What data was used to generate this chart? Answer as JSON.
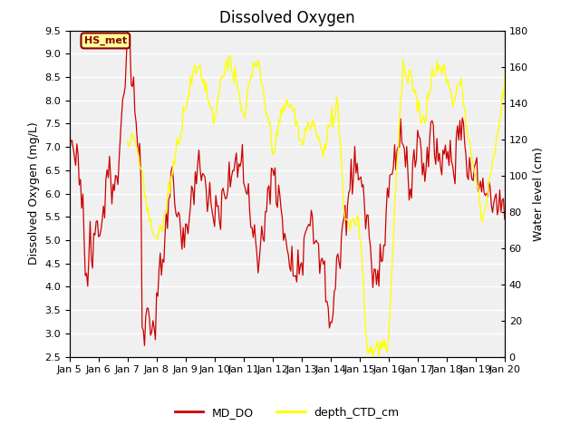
{
  "title": "Dissolved Oxygen",
  "ylabel_left": "Dissolved Oxygen (mg/L)",
  "ylabel_right": "Water level (cm)",
  "ylim_left": [
    2.5,
    9.5
  ],
  "ylim_right": [
    0,
    180
  ],
  "yticks_left": [
    2.5,
    3.0,
    3.5,
    4.0,
    4.5,
    5.0,
    5.5,
    6.0,
    6.5,
    7.0,
    7.5,
    8.0,
    8.5,
    9.0,
    9.5
  ],
  "yticks_right": [
    0,
    20,
    40,
    60,
    80,
    100,
    120,
    140,
    160,
    180
  ],
  "annotation_text": "HS_met",
  "annotation_color": "#8B0000",
  "annotation_bg": "#FFFF99",
  "line_color_DO": "#CC0000",
  "line_color_depth": "#FFFF00",
  "legend_labels": [
    "MD_DO",
    "depth_CTD_cm"
  ],
  "background_color": "#E8E8E8",
  "plot_bg_color": "#F0F0F0",
  "title_fontsize": 12,
  "axis_label_fontsize": 9,
  "tick_fontsize": 8
}
